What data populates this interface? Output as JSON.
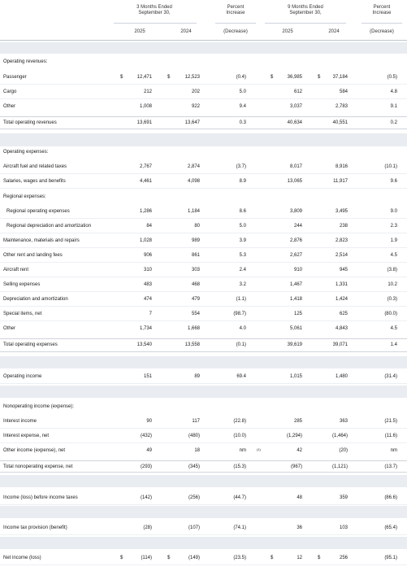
{
  "headers": {
    "three_months": "3 Months Ended\nSeptember 30,",
    "nine_months": "9 Months Ended\nSeptember 30,",
    "pct_title": "Percent\nIncrease",
    "decrease": "(Decrease)",
    "y2025": "2025",
    "y2024": "2024"
  },
  "sections": {
    "revenues": "Operating revenues:",
    "expenses": "Operating expenses:",
    "regional": "Regional expenses:",
    "nonop": "Nonoperating income (expense):"
  },
  "rows": [
    {
      "label": "Passenger",
      "q25": "12,471",
      "q24": "12,523",
      "qp": "(0.4)",
      "n25": "36,985",
      "n24": "37,184",
      "np": "(0.5)",
      "dollar": true
    },
    {
      "label": "Cargo",
      "q25": "212",
      "q24": "202",
      "qp": "5.0",
      "n25": "612",
      "n24": "584",
      "np": "4.8"
    },
    {
      "label": "Other",
      "q25": "1,008",
      "q24": "922",
      "qp": "9.4",
      "n25": "3,037",
      "n24": "2,783",
      "np": "9.1"
    },
    {
      "label": "Total operating revenues",
      "q25": "13,691",
      "q24": "13,647",
      "qp": "0.3",
      "n25": "40,634",
      "n24": "40,551",
      "np": "0.2"
    },
    {
      "label": "Aircraft fuel and related taxes",
      "q25": "2,767",
      "q24": "2,874",
      "qp": "(3.7)",
      "n25": "8,017",
      "n24": "8,916",
      "np": "(10.1)"
    },
    {
      "label": "Salaries, wages and benefits",
      "q25": "4,461",
      "q24": "4,098",
      "qp": "8.9",
      "n25": "13,065",
      "n24": "11,917",
      "np": "9.6"
    },
    {
      "label": "Regional operating expenses",
      "q25": "1,286",
      "q24": "1,184",
      "qp": "8.6",
      "n25": "3,809",
      "n24": "3,495",
      "np": "9.0",
      "indent": true
    },
    {
      "label": "Regional depreciation and amortization",
      "q25": "84",
      "q24": "80",
      "qp": "5.0",
      "n25": "244",
      "n24": "238",
      "np": "2.3",
      "indent": true
    },
    {
      "label": "Maintenance, materials and repairs",
      "q25": "1,028",
      "q24": "989",
      "qp": "3.9",
      "n25": "2,876",
      "n24": "2,823",
      "np": "1.9"
    },
    {
      "label": "Other rent and landing fees",
      "q25": "906",
      "q24": "861",
      "qp": "5.3",
      "n25": "2,627",
      "n24": "2,514",
      "np": "4.5"
    },
    {
      "label": "Aircraft rent",
      "q25": "310",
      "q24": "303",
      "qp": "2.4",
      "n25": "910",
      "n24": "945",
      "np": "(3.8)"
    },
    {
      "label": "Selling expenses",
      "q25": "483",
      "q24": "468",
      "qp": "3.2",
      "n25": "1,467",
      "n24": "1,331",
      "np": "10.2"
    },
    {
      "label": "Depreciation and amortization",
      "q25": "474",
      "q24": "479",
      "qp": "(1.1)",
      "n25": "1,418",
      "n24": "1,424",
      "np": "(0.3)"
    },
    {
      "label": "Special items, net",
      "q25": "7",
      "q24": "554",
      "qp": "(98.7)",
      "n25": "125",
      "n24": "625",
      "np": "(80.0)"
    },
    {
      "label": "Other",
      "q25": "1,734",
      "q24": "1,668",
      "qp": "4.0",
      "n25": "5,061",
      "n24": "4,843",
      "np": "4.5"
    },
    {
      "label": "Total operating expenses",
      "q25": "13,540",
      "q24": "13,558",
      "qp": "(0.1)",
      "n25": "39,619",
      "n24": "39,071",
      "np": "1.4"
    },
    {
      "label": "Operating income",
      "q25": "151",
      "q24": "89",
      "qp": "69.4",
      "n25": "1,015",
      "n24": "1,480",
      "np": "(31.4)"
    },
    {
      "label": "Interest income",
      "q25": "90",
      "q24": "117",
      "qp": "(22.8)",
      "n25": "285",
      "n24": "363",
      "np": "(21.5)"
    },
    {
      "label": "Interest expense, net",
      "q25": "(432)",
      "q24": "(480)",
      "qp": "(10.0)",
      "n25": "(1,294)",
      "n24": "(1,464)",
      "np": "(11.6)"
    },
    {
      "label": "Other income (expense), net",
      "q25": "49",
      "q24": "18",
      "qp": "nm",
      "qpnote": "(1)",
      "n25": "42",
      "n24": "(20)",
      "np": "nm"
    },
    {
      "label": "Total nonoperating expense, net",
      "q25": "(293)",
      "q24": "(345)",
      "qp": "(15.3)",
      "n25": "(967)",
      "n24": "(1,121)",
      "np": "(13.7)"
    },
    {
      "label": "Income (loss) before income taxes",
      "q25": "(142)",
      "q24": "(256)",
      "qp": "(44.7)",
      "n25": "48",
      "n24": "359",
      "np": "(86.6)"
    },
    {
      "label": "Income tax provision (benefit)",
      "q25": "(28)",
      "q24": "(107)",
      "qp": "(74.1)",
      "n25": "36",
      "n24": "103",
      "np": "(65.4)"
    },
    {
      "label": "Net income (loss)",
      "q25": "(114)",
      "q24": "(149)",
      "qp": "(23.5)",
      "n25": "12",
      "n24": "256",
      "np": "(95.1)",
      "dollar": true
    }
  ],
  "dollar_sign": "$"
}
